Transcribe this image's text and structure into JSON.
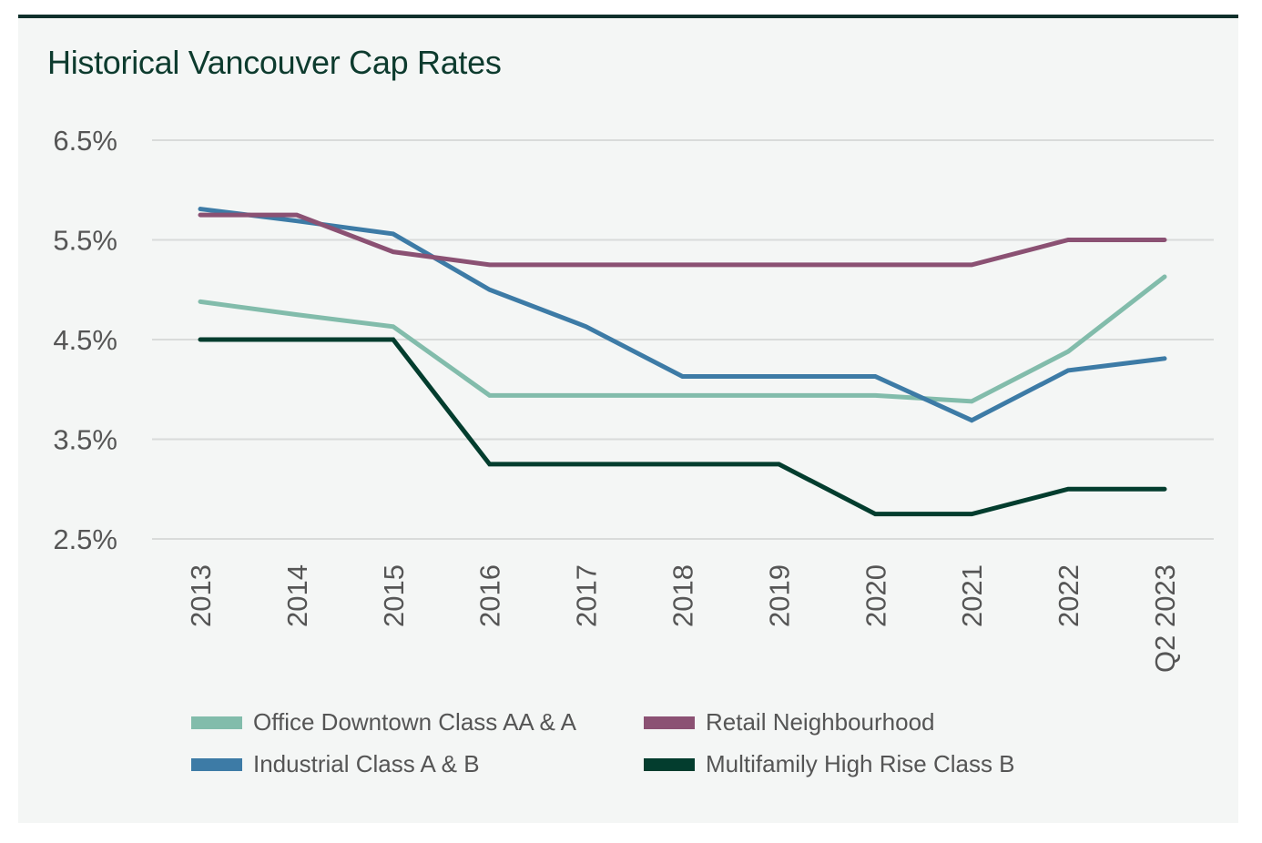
{
  "chart_data": {
    "type": "line",
    "title": "Historical Vancouver Cap Rates",
    "xlabel": "",
    "ylabel": "",
    "x": [
      "2013",
      "2014",
      "2015",
      "2016",
      "2017",
      "2018",
      "2019",
      "2020",
      "2021",
      "2022",
      "Q2 2023"
    ],
    "ylim": [
      2.5,
      6.5
    ],
    "yticks": [
      2.5,
      3.5,
      4.5,
      5.5,
      6.5
    ],
    "ytick_labels": [
      "2.5%",
      "3.5%",
      "4.5%",
      "5.5%",
      "6.5%"
    ],
    "grid": "horizontal",
    "legend_position": "bottom",
    "series": [
      {
        "name": "Office Downtown Class AA & A",
        "color": "#82bcab",
        "values": [
          4.88,
          4.75,
          4.63,
          3.94,
          3.94,
          3.94,
          3.94,
          3.94,
          3.88,
          4.38,
          5.13
        ]
      },
      {
        "name": "Retail Neighbourhood",
        "color": "#8b5173",
        "values": [
          5.75,
          5.75,
          5.38,
          5.25,
          5.25,
          5.25,
          5.25,
          5.25,
          5.25,
          5.5,
          5.5
        ]
      },
      {
        "name": "Industrial Class A & B",
        "color": "#3d7ba6",
        "values": [
          5.81,
          5.69,
          5.56,
          5.0,
          4.63,
          4.13,
          4.13,
          4.13,
          3.69,
          4.19,
          4.31
        ]
      },
      {
        "name": "Multifamily High Rise Class B",
        "color": "#033d2e",
        "values": [
          4.5,
          4.5,
          4.5,
          3.25,
          3.25,
          3.25,
          3.25,
          2.75,
          2.75,
          3.0,
          3.0
        ]
      }
    ]
  }
}
